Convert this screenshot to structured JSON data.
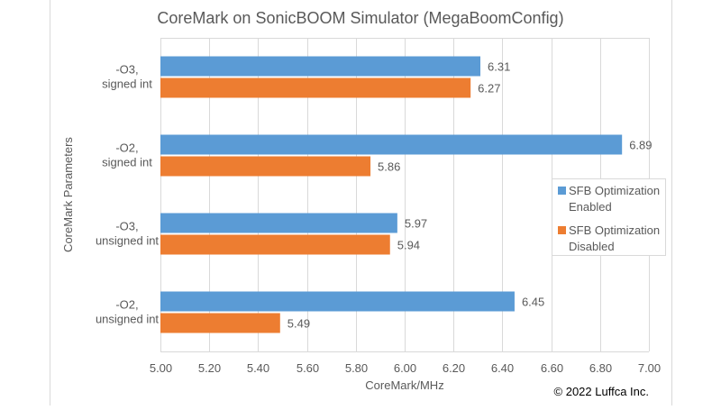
{
  "chart_data": {
    "type": "bar",
    "orientation": "horizontal",
    "title": "CoreMark on SonicBOOM Simulator (MegaBoomConfig)",
    "xlabel": "CoreMark/MHz",
    "ylabel": "CoreMark Parameters",
    "xlim": [
      5.0,
      7.0
    ],
    "xticks": [
      "5.00",
      "5.20",
      "5.40",
      "5.60",
      "5.80",
      "6.00",
      "6.20",
      "6.40",
      "6.60",
      "6.80",
      "7.00"
    ],
    "grid": true,
    "legend_position": "right",
    "categories": [
      [
        "-O3,",
        "signed int"
      ],
      [
        "-O2,",
        "signed int"
      ],
      [
        "-O3,",
        "unsigned int"
      ],
      [
        "-O2,",
        "unsigned int"
      ]
    ],
    "series": [
      {
        "name": [
          "SFB Optimization",
          "Enabled"
        ],
        "color": "#5B9BD5",
        "values": [
          6.31,
          6.89,
          5.97,
          6.45
        ],
        "labels": [
          "6.31",
          "6.89",
          "5.97",
          "6.45"
        ]
      },
      {
        "name": [
          "SFB Optimization",
          "Disabled"
        ],
        "color": "#ED7D31",
        "values": [
          6.27,
          5.86,
          5.94,
          5.49
        ],
        "labels": [
          "6.27",
          "5.86",
          "5.94",
          "5.49"
        ]
      }
    ]
  },
  "copyright": "© 2022 Luffca Inc."
}
